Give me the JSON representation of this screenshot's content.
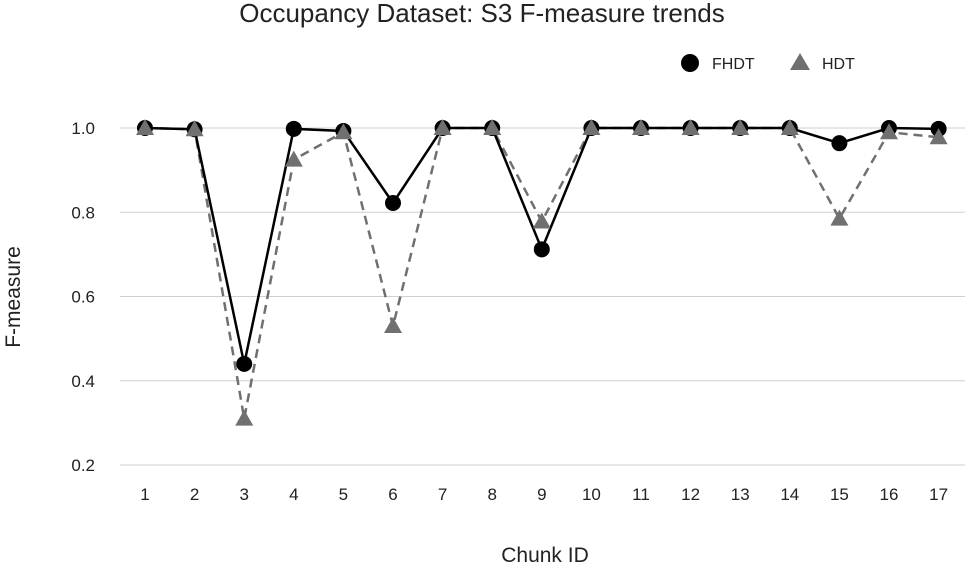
{
  "chart_data": {
    "type": "line",
    "title": "Occupancy Dataset: S3 F-measure trends",
    "xlabel": "Chunk ID",
    "ylabel": "F-measure",
    "categories": [
      "1",
      "2",
      "3",
      "4",
      "5",
      "6",
      "7",
      "8",
      "9",
      "10",
      "11",
      "12",
      "13",
      "14",
      "15",
      "16",
      "17"
    ],
    "ylim": [
      0.2,
      1.0
    ],
    "yticks": [
      "0.2",
      "0.4",
      "0.6",
      "0.8",
      "1.0"
    ],
    "grid": true,
    "legend_position": "top-right",
    "series": [
      {
        "name": "FHDT",
        "color": "#000000",
        "marker": "circle",
        "line_style": "solid",
        "values": [
          1.0,
          0.997,
          0.44,
          0.998,
          0.993,
          0.822,
          1.0,
          1.0,
          0.712,
          1.0,
          1.0,
          1.0,
          1.0,
          1.0,
          0.964,
          1.0,
          0.998
        ]
      },
      {
        "name": "HDT",
        "color": "#707070",
        "marker": "triangle",
        "line_style": "dashed",
        "values": [
          1.0,
          0.997,
          0.31,
          0.925,
          0.99,
          0.53,
          1.0,
          1.0,
          0.778,
          1.0,
          1.0,
          1.0,
          1.0,
          1.0,
          0.785,
          0.99,
          0.978
        ]
      }
    ]
  }
}
